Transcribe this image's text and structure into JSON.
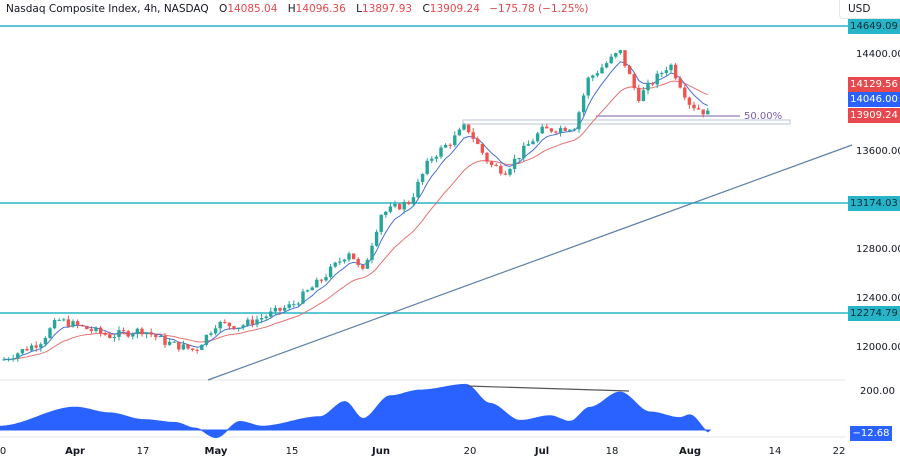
{
  "legend": {
    "title": "Nasdaq Composite Index, 4h, NASDAQ",
    "open_label": "O",
    "open": "14085.04",
    "high_label": "H",
    "high": "14096.36",
    "low_label": "L",
    "low": "13897.93",
    "close_label": "C",
    "close": "13909.24",
    "change": "−175.78 (−1.25%)"
  },
  "currency": "USD",
  "colors": {
    "up": "#26a69a",
    "down": "#ef5350",
    "hline": "#26b5c8",
    "trendline": "#5b7fa6",
    "ema_fast": "#4a6fd6",
    "ema_slow": "#e57373",
    "fib": "#7b5ea7",
    "osc_fill": "#2962ff",
    "tag_red": "#e5484d",
    "tag_blue": "#2962ff",
    "tag_cyan": "#26b5c8"
  },
  "price_axis": {
    "ticks": [
      "14400.00",
      "13600.00",
      "12800.00",
      "12400.00",
      "12000.00"
    ],
    "tags": [
      {
        "value": "14649.09",
        "color": "cyan"
      },
      {
        "value": "14129.56",
        "color": "red"
      },
      {
        "value": "14046.00",
        "color": "blue"
      },
      {
        "value": "13909.24",
        "color": "red"
      },
      {
        "value": "13174.03",
        "color": "cyan"
      },
      {
        "value": "12274.79",
        "color": "cyan"
      }
    ]
  },
  "fib_label": "50.00%",
  "oscillator": {
    "tick": "200.00",
    "value": "−12.68"
  },
  "time_axis": [
    {
      "label": "0",
      "bold": false
    },
    {
      "label": "Apr",
      "bold": true
    },
    {
      "label": "17",
      "bold": false
    },
    {
      "label": "May",
      "bold": true
    },
    {
      "label": "15",
      "bold": false
    },
    {
      "label": "Jun",
      "bold": true
    },
    {
      "label": "20",
      "bold": false
    },
    {
      "label": "Jul",
      "bold": true
    },
    {
      "label": "18",
      "bold": false
    },
    {
      "label": "Aug",
      "bold": true
    },
    {
      "label": "14",
      "bold": false
    },
    {
      "label": "22",
      "bold": false
    }
  ],
  "chart_data": {
    "type": "candlestick",
    "title": "Nasdaq Composite Index, 4h, NASDAQ",
    "xlabel": "",
    "ylabel": "USD",
    "ylim": [
      11850,
      14750
    ],
    "x_ticks": [
      "0",
      "Apr",
      "17",
      "May",
      "15",
      "Jun",
      "20",
      "Jul",
      "18",
      "Aug",
      "14",
      "22"
    ],
    "y_ticks": [
      12000,
      12400,
      12800,
      13600,
      14400
    ],
    "last_ohlc": {
      "open": 14085.04,
      "high": 14096.36,
      "low": 13897.93,
      "close": 13909.24,
      "change": -175.78,
      "change_pct": -1.25
    },
    "horizontal_levels": [
      14649.09,
      13174.03,
      12274.79
    ],
    "fib_50_level": 13909.24,
    "ema_values_last": {
      "fast": 14046.0,
      "slow": 14129.56
    },
    "trendline": {
      "from": {
        "x": "late Apr",
        "y": 11900
      },
      "to": {
        "x": "mid Aug",
        "y": 13640
      }
    },
    "close_path_approx": {
      "x": [
        "Mar 30",
        "Apr 3",
        "Apr 6",
        "Apr 12",
        "Apr 17",
        "Apr 21",
        "Apr 25",
        "May 1",
        "May 5",
        "May 10",
        "May 15",
        "May 19",
        "May 24",
        "May 26",
        "May 31",
        "Jun 5",
        "Jun 9",
        "Jun 13",
        "Jun 16",
        "Jun 21",
        "Jun 26",
        "Jun 30",
        "Jul 5",
        "Jul 10",
        "Jul 13",
        "Jul 19",
        "Jul 24",
        "Jul 28",
        "Aug 1",
        "Aug 3"
      ],
      "values": [
        11900,
        12050,
        12230,
        12100,
        12150,
        12050,
        11980,
        12200,
        12180,
        12250,
        12350,
        12550,
        12800,
        12600,
        13100,
        13200,
        13550,
        13700,
        13820,
        13500,
        13450,
        13780,
        13800,
        13820,
        14200,
        14430,
        14050,
        14330,
        14000,
        13909
      ]
    },
    "oscillator": {
      "name": "momentum",
      "ytick": 200,
      "last": -12.68,
      "x": [
        "Mar 30",
        "Apr 3",
        "Apr 10",
        "Apr 17",
        "Apr 24",
        "Apr 28",
        "May 3",
        "May 8",
        "May 15",
        "May 22",
        "May 26",
        "Jun 1",
        "Jun 5",
        "Jun 9",
        "Jun 16",
        "Jun 21",
        "Jun 26",
        "Jul 3",
        "Jul 10",
        "Jul 14",
        "Jul 19",
        "Jul 24",
        "Jul 28",
        "Aug 1",
        "Aug 3"
      ],
      "values": [
        20,
        120,
        90,
        55,
        40,
        10,
        -40,
        45,
        20,
        70,
        150,
        60,
        180,
        210,
        240,
        140,
        50,
        75,
        45,
        120,
        200,
        95,
        65,
        80,
        -12.68
      ]
    },
    "annotations": [
      "50.00%",
      "bearish divergence line on oscillator (Jun 19 peak to Jul 19 peak)"
    ]
  }
}
